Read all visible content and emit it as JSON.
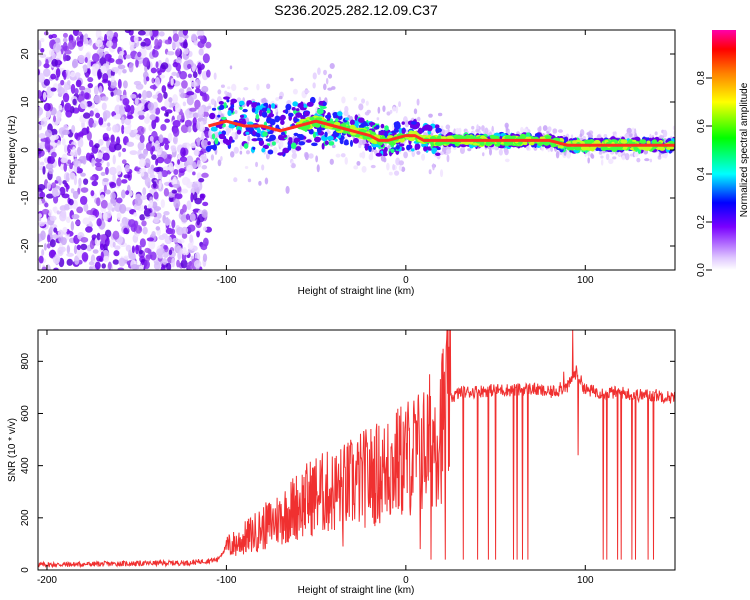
{
  "title": "S236.2025.282.12.09.C37",
  "chart_data": [
    {
      "type": "heatmap",
      "xlabel": "Height of straight line (km)",
      "ylabel": "Frequency (Hz)",
      "xlim": [
        -205,
        150
      ],
      "ylim": [
        -25,
        25
      ],
      "x_ticks": [
        -200,
        -100,
        0,
        100
      ],
      "y_ticks": [
        -20,
        -10,
        0,
        10,
        20
      ],
      "grid": false,
      "ridge": {
        "x": [
          -110,
          -100,
          -90,
          -80,
          -70,
          -60,
          -50,
          -40,
          -30,
          -20,
          -15,
          -10,
          0,
          5,
          10,
          20,
          40,
          60,
          80,
          90,
          100,
          120,
          150
        ],
        "y": [
          5,
          6,
          5,
          5,
          4,
          5,
          6,
          5,
          4,
          3,
          2,
          2,
          3,
          3,
          2,
          2,
          2,
          2,
          2,
          1,
          1,
          1,
          1
        ]
      },
      "colorbar": {
        "label": "Normalized spectral amplitude",
        "range": [
          0.0,
          1.0
        ],
        "ticks": [
          "0.0",
          "0.2",
          "0.4",
          "0.6",
          "0.8"
        ]
      }
    },
    {
      "type": "line",
      "xlabel": "Height of straight line (km)",
      "ylabel": "SNR (10 * v/v)",
      "xlim": [
        -205,
        150
      ],
      "ylim": [
        0,
        920
      ],
      "x_ticks": [
        -200,
        -100,
        0,
        100
      ],
      "y_ticks": [
        0,
        200,
        400,
        600,
        800
      ],
      "grid": false,
      "series": [
        {
          "color": "#f03030",
          "x": [
            -205,
            -180,
            -150,
            -120,
            -105,
            -100,
            -95,
            -90,
            -80,
            -70,
            -60,
            -50,
            -40,
            -30,
            -20,
            -10,
            0,
            10,
            20,
            25,
            30,
            40,
            50,
            60,
            70,
            80,
            90,
            95,
            100,
            110,
            120,
            130,
            140,
            150
          ],
          "y": [
            20,
            22,
            25,
            28,
            40,
            90,
            100,
            120,
            160,
            200,
            250,
            290,
            300,
            330,
            360,
            380,
            430,
            460,
            560,
            660,
            680,
            685,
            690,
            690,
            695,
            680,
            700,
            760,
            690,
            680,
            680,
            670,
            670,
            660
          ]
        }
      ]
    }
  ]
}
